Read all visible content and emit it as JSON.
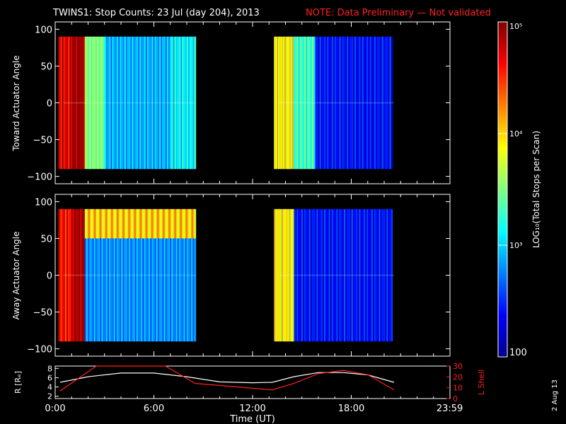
{
  "title": "TWINS1: Stop Counts: 23 Jul (day 204), 2013",
  "note": "NOTE: Data Preliminary — Not validated",
  "date_stamp": "2 Aug 13",
  "colors": {
    "background": "#000000",
    "axis": "#ffffff",
    "note": "#ff2020",
    "r_line": "#ffffff",
    "l_line": "#ff2020"
  },
  "chart_data": [
    {
      "type": "heatmap",
      "name": "toward",
      "ylabel": "Toward Actuator Angle",
      "ylim": [
        -110,
        110
      ],
      "yticks": [
        100,
        50,
        0,
        -50,
        -100
      ],
      "ytick_labels": [
        "100",
        "50",
        "0",
        "−50",
        "−100"
      ],
      "angle_range": [
        -90,
        90
      ],
      "data_blocks": [
        {
          "time_start_h": 0.2,
          "time_end_h": 8.55
        },
        {
          "time_start_h": 13.3,
          "time_end_h": 20.6
        }
      ],
      "approx_log10_counts": [
        {
          "time_h": [
            0.2,
            1.0
          ],
          "value": 4.7
        },
        {
          "time_h": [
            1.0,
            1.8
          ],
          "value": 4.95
        },
        {
          "time_h": [
            1.8,
            3.0
          ],
          "value": 3.5
        },
        {
          "time_h": [
            3.0,
            7.0
          ],
          "value": 2.9
        },
        {
          "time_h": [
            7.0,
            8.55
          ],
          "value": 3.1
        },
        {
          "time_h": [
            13.3,
            14.5
          ],
          "value": 3.9
        },
        {
          "time_h": [
            14.5,
            15.8
          ],
          "value": 3.3
        },
        {
          "time_h": [
            15.8,
            20.5
          ],
          "value": 2.4
        }
      ]
    },
    {
      "type": "heatmap",
      "name": "away",
      "ylabel": "Away Actuator Angle",
      "ylim": [
        -110,
        110
      ],
      "yticks": [
        100,
        50,
        0,
        -50,
        -100
      ],
      "ytick_labels": [
        "100",
        "50",
        "0",
        "−50",
        "−100"
      ],
      "angle_range": [
        -90,
        90
      ],
      "data_blocks": [
        {
          "time_start_h": 0.2,
          "time_end_h": 8.55
        },
        {
          "time_start_h": 13.3,
          "time_end_h": 20.6
        }
      ],
      "approx_log10_counts": [
        {
          "time_h": [
            0.2,
            1.0
          ],
          "value": 4.6
        },
        {
          "time_h": [
            1.0,
            1.8
          ],
          "value": 4.9
        },
        {
          "time_h": [
            1.8,
            8.55
          ],
          "value": 2.8,
          "upper_band_value": 4.0
        },
        {
          "time_h": [
            13.3,
            14.5
          ],
          "value": 3.9
        },
        {
          "time_h": [
            14.5,
            20.5
          ],
          "value": 2.4
        }
      ]
    },
    {
      "type": "line",
      "name": "orbit",
      "ylabel": "R [Rₑ]",
      "ylabel_right": "L Shell",
      "ylim": [
        1.5,
        8.5
      ],
      "yticks": [
        8,
        6,
        4,
        2
      ],
      "yticks_right": [
        30,
        20,
        10,
        0
      ],
      "ylim_right": [
        0,
        30
      ],
      "series": [
        {
          "name": "R",
          "x": [
            0.3,
            2,
            4,
            6,
            8,
            10,
            12,
            13.2,
            14.5,
            16,
            17.5,
            19,
            20.6
          ],
          "values": [
            5.0,
            6.2,
            7.0,
            7.0,
            6.2,
            5.1,
            4.9,
            5.0,
            6.2,
            7.1,
            7.1,
            6.6,
            5.0
          ]
        },
        {
          "name": "L Shell",
          "x": [
            0.3,
            2.5,
            6.7,
            8.5,
            13.2,
            14.5,
            16,
            17.5,
            19,
            20.6
          ],
          "values": [
            7,
            31,
            31,
            14,
            8,
            14,
            23,
            26,
            22,
            8
          ]
        }
      ]
    }
  ],
  "xaxis": {
    "label": "Time (UT)",
    "ticks": [
      0,
      6,
      12,
      18,
      23.983
    ],
    "tick_labels": [
      "0:00",
      "6:00",
      "12:00",
      "18:00",
      "23:59"
    ],
    "xlim": [
      0,
      24
    ]
  },
  "colorbar": {
    "label": "LOG₁₀(Total Stops per Scan)",
    "range_log10": [
      2,
      5
    ],
    "tick_labels": [
      "10⁵",
      "10⁴",
      "10³",
      "100"
    ]
  }
}
